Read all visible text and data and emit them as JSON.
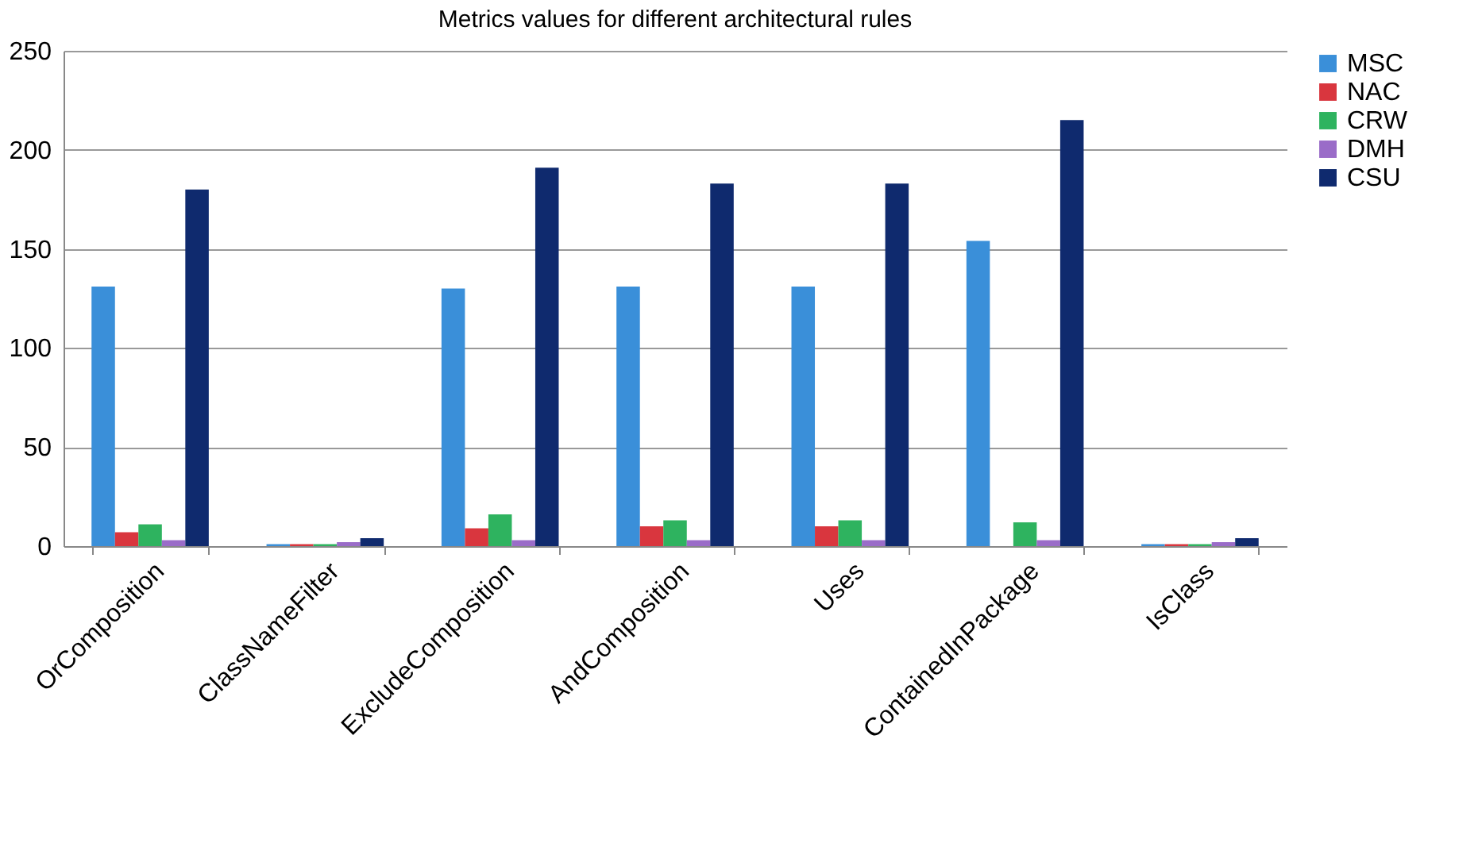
{
  "chart_data": {
    "type": "bar",
    "title": "Metrics values for different architectural rules",
    "categories": [
      "OrComposition",
      "ClassNameFilter",
      "ExcludeComposition",
      "AndComposition",
      "Uses",
      "ContainedInPackage",
      "IsClass"
    ],
    "series": [
      {
        "name": "MSC",
        "color": "#3a8fd9",
        "values": [
          131,
          1,
          130,
          131,
          131,
          154,
          1
        ]
      },
      {
        "name": "NAC",
        "color": "#d9363e",
        "values": [
          7,
          1,
          9,
          10,
          10,
          0,
          1
        ]
      },
      {
        "name": "CRW",
        "color": "#2eb35f",
        "values": [
          11,
          1,
          16,
          13,
          13,
          12,
          1
        ]
      },
      {
        "name": "DMH",
        "color": "#9a6cc8",
        "values": [
          3,
          2,
          3,
          3,
          3,
          3,
          2
        ]
      },
      {
        "name": "CSU",
        "color": "#0f2a6e",
        "values": [
          180,
          4,
          191,
          183,
          183,
          215,
          4
        ]
      }
    ],
    "ylim": [
      0,
      250
    ],
    "yticks": [
      0,
      50,
      100,
      150,
      200,
      250
    ],
    "grid": "y",
    "legend": "top right"
  }
}
